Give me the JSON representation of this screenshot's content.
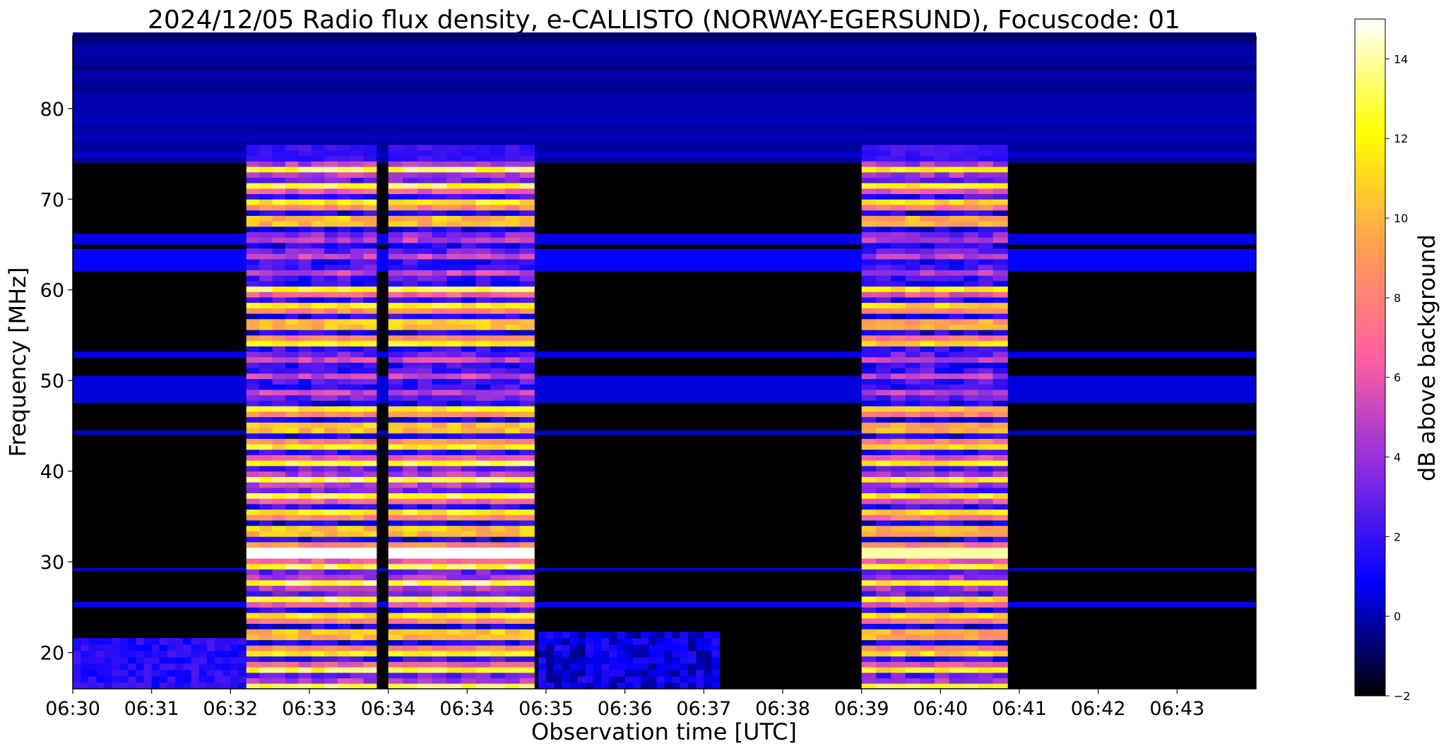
{
  "chart_data": {
    "type": "heatmap",
    "title": "2024/12/05  Radio flux density, e-CALLISTO (NORWAY-EGERSUND), Focuscode: 01",
    "xlabel": "Observation time [UTC]",
    "ylabel": "Frequency [MHz]",
    "x_tick_labels": [
      "06:30",
      "06:31",
      "06:32",
      "06:33",
      "06:34",
      "06:34",
      "06:35",
      "06:36",
      "06:37",
      "06:38",
      "06:39",
      "06:40",
      "06:41",
      "06:42",
      "06:43"
    ],
    "y_ticks": [
      20,
      30,
      40,
      50,
      60,
      70,
      80
    ],
    "ylim": [
      16,
      88
    ],
    "xlim_minutes": [
      0,
      15
    ],
    "colorbar": {
      "label": "dB above background",
      "range": [
        -2,
        15
      ],
      "ticks": [
        -2,
        0,
        2,
        4,
        6,
        8,
        10,
        12,
        14
      ],
      "colormap": "gnuplot2",
      "colors": [
        "#000000",
        "#0000ff",
        "#8a2be2",
        "#ff5fa0",
        "#ffa050",
        "#ffff00",
        "#ffffff"
      ]
    },
    "bursts": [
      {
        "start_min": 2.2,
        "end_min": 3.85,
        "fmin": 16,
        "fmax": 76,
        "peak_db": 15
      },
      {
        "start_min": 4.0,
        "end_min": 5.85,
        "fmin": 16,
        "fmax": 76,
        "peak_db": 15
      },
      {
        "start_min": 10.0,
        "end_min": 11.85,
        "fmin": 16,
        "fmax": 76,
        "peak_db": 14
      }
    ],
    "background": {
      "high_band_fmin": 74,
      "high_band_fmax": 88,
      "level_db": 0
    }
  }
}
